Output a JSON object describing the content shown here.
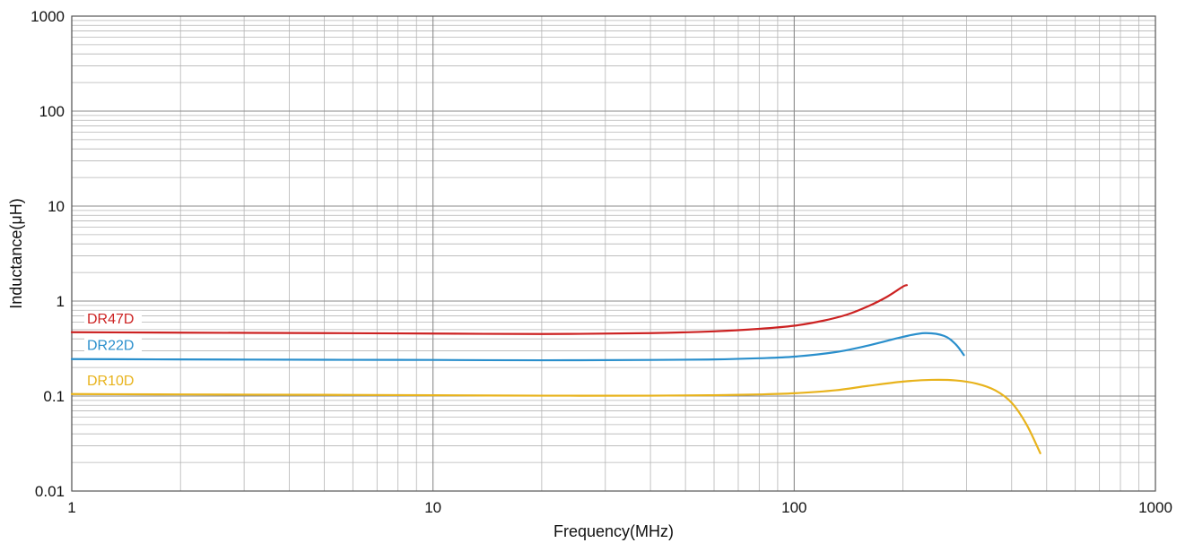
{
  "chart_data": {
    "type": "line",
    "title": "",
    "xlabel": "Frequency(MHz)",
    "ylabel": "Inductance(μH)",
    "x_scale": "log",
    "y_scale": "log",
    "xlim": [
      1,
      1000
    ],
    "ylim": [
      0.01,
      1000
    ],
    "grid": true,
    "x_ticks": [
      {
        "value": 1,
        "label": "1"
      },
      {
        "value": 10,
        "label": "10"
      },
      {
        "value": 100,
        "label": "100"
      },
      {
        "value": 1000,
        "label": "1000"
      }
    ],
    "y_ticks": [
      {
        "value": 0.01,
        "label": "0.01"
      },
      {
        "value": 0.1,
        "label": "0.1"
      },
      {
        "value": 1,
        "label": "1"
      },
      {
        "value": 10,
        "label": "10"
      },
      {
        "value": 100,
        "label": "100"
      },
      {
        "value": 1000,
        "label": "1000"
      }
    ],
    "series": [
      {
        "name": "DR47D",
        "color": "#cc2222",
        "x": [
          1,
          2,
          5,
          10,
          20,
          40,
          60,
          80,
          100,
          120,
          140,
          160,
          180,
          200,
          205
        ],
        "y": [
          0.47,
          0.465,
          0.46,
          0.455,
          0.45,
          0.46,
          0.48,
          0.51,
          0.55,
          0.62,
          0.72,
          0.88,
          1.1,
          1.42,
          1.47
        ]
      },
      {
        "name": "DR22D",
        "color": "#2a8fcc",
        "x": [
          1,
          2,
          5,
          10,
          20,
          40,
          60,
          80,
          100,
          130,
          160,
          200,
          230,
          260,
          280,
          295
        ],
        "y": [
          0.245,
          0.243,
          0.241,
          0.24,
          0.238,
          0.24,
          0.243,
          0.25,
          0.26,
          0.29,
          0.34,
          0.42,
          0.46,
          0.43,
          0.35,
          0.27
        ]
      },
      {
        "name": "DR10D",
        "color": "#e8b31c",
        "x": [
          1,
          2,
          5,
          10,
          20,
          40,
          60,
          80,
          100,
          130,
          160,
          200,
          240,
          280,
          320,
          360,
          400,
          440,
          480
        ],
        "y": [
          0.105,
          0.104,
          0.103,
          0.102,
          0.101,
          0.101,
          0.102,
          0.104,
          0.107,
          0.115,
          0.128,
          0.142,
          0.148,
          0.146,
          0.135,
          0.115,
          0.085,
          0.05,
          0.025
        ]
      }
    ]
  }
}
